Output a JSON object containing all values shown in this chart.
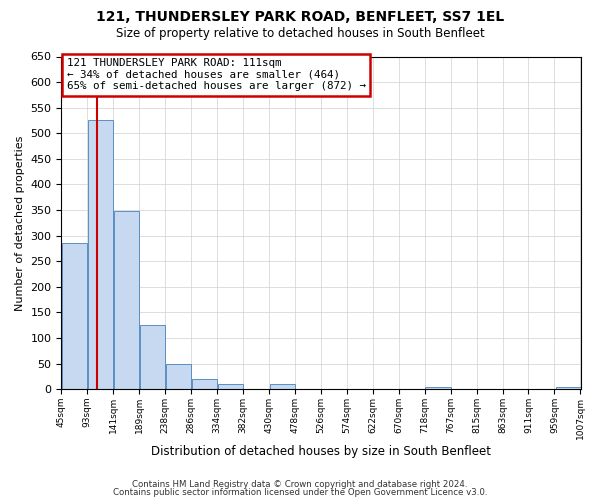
{
  "title": "121, THUNDERSLEY PARK ROAD, BENFLEET, SS7 1EL",
  "subtitle": "Size of property relative to detached houses in South Benfleet",
  "xlabel": "Distribution of detached houses by size in South Benfleet",
  "ylabel": "Number of detached properties",
  "bar_values": [
    285,
    525,
    348,
    125,
    49,
    20,
    10,
    0,
    10,
    0,
    0,
    0,
    0,
    0,
    5,
    0,
    0,
    0,
    0,
    5
  ],
  "bin_starts": [
    45,
    93,
    141,
    189,
    238,
    286,
    334,
    382,
    430,
    478,
    526,
    574,
    622,
    670,
    718,
    767,
    815,
    863,
    911,
    959
  ],
  "bin_width": 48,
  "tick_labels": [
    "45sqm",
    "93sqm",
    "141sqm",
    "189sqm",
    "238sqm",
    "286sqm",
    "334sqm",
    "382sqm",
    "430sqm",
    "478sqm",
    "526sqm",
    "574sqm",
    "622sqm",
    "670sqm",
    "718sqm",
    "767sqm",
    "815sqm",
    "863sqm",
    "911sqm",
    "959sqm",
    "1007sqm"
  ],
  "bar_color": "#c6d9f0",
  "bar_edge_color": "#5a8fc3",
  "ylim": [
    0,
    650
  ],
  "yticks": [
    0,
    50,
    100,
    150,
    200,
    250,
    300,
    350,
    400,
    450,
    500,
    550,
    600,
    650
  ],
  "xlim_left": 45,
  "xlim_right": 1007,
  "property_line_x": 111,
  "annotation_title": "121 THUNDERSLEY PARK ROAD: 111sqm",
  "annotation_line1": "← 34% of detached houses are smaller (464)",
  "annotation_line2": "65% of semi-detached houses are larger (872) →",
  "annotation_box_color": "#ffffff",
  "annotation_box_edge_color": "#cc0000",
  "red_line_color": "#cc0000",
  "footer1": "Contains HM Land Registry data © Crown copyright and database right 2024.",
  "footer2": "Contains public sector information licensed under the Open Government Licence v3.0.",
  "background_color": "#ffffff",
  "grid_color": "#d0d0d0"
}
